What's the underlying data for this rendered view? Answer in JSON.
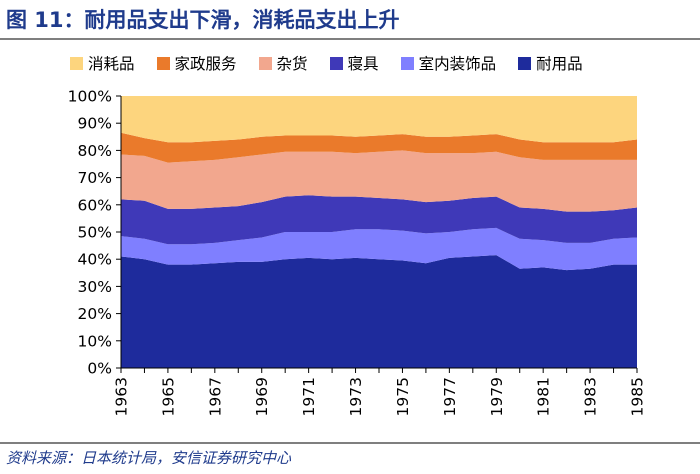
{
  "title": "图 11：耐用品支出下滑，消耗品支出上升",
  "source": "资料来源：日本统计局，安信证券研究中心",
  "chart_data": {
    "type": "area",
    "stacked": true,
    "x": [
      1963,
      1964,
      1965,
      1966,
      1967,
      1968,
      1969,
      1970,
      1971,
      1972,
      1973,
      1974,
      1975,
      1976,
      1977,
      1978,
      1979,
      1980,
      1981,
      1982,
      1983,
      1984,
      1985
    ],
    "x_tick_labels": [
      "1963",
      "1965",
      "1967",
      "1969",
      "1971",
      "1973",
      "1975",
      "1977",
      "1979",
      "1981",
      "1983",
      "1985"
    ],
    "y_tick_labels": [
      "0%",
      "10%",
      "20%",
      "30%",
      "40%",
      "50%",
      "60%",
      "70%",
      "80%",
      "90%",
      "100%"
    ],
    "ylim": [
      0,
      100
    ],
    "legend_position": "top",
    "series": [
      {
        "name": "耐用品",
        "color": "#1e2b9c",
        "values": [
          41,
          40,
          38,
          38,
          38.5,
          39,
          39,
          40,
          40.5,
          40,
          40.5,
          40,
          39.5,
          38.5,
          40.5,
          41,
          41.5,
          36.5,
          37,
          36,
          36.5,
          38,
          38
        ]
      },
      {
        "name": "室内装饰品",
        "color": "#7f7fff",
        "values": [
          7.5,
          7.5,
          7.5,
          7.5,
          7.5,
          8,
          9,
          10,
          9.5,
          10,
          10.5,
          11,
          11,
          11,
          9.5,
          10,
          10,
          11,
          10,
          10,
          9.5,
          9.5,
          10
        ]
      },
      {
        "name": "寝具",
        "color": "#3f39b8",
        "values": [
          13.5,
          14,
          13,
          13,
          13,
          12.5,
          13,
          13,
          13.5,
          13,
          12,
          11.5,
          11.5,
          11.5,
          11.5,
          11.5,
          11.5,
          11.5,
          11.5,
          11.5,
          11.5,
          10.5,
          11
        ]
      },
      {
        "name": "杂货",
        "color": "#f2a78e",
        "values": [
          16.5,
          16.5,
          17,
          17.5,
          17.5,
          18,
          17.5,
          16.5,
          16,
          16.5,
          16,
          17,
          18,
          18,
          17.5,
          16.5,
          16.5,
          18.5,
          18,
          19,
          19,
          18.5,
          17.5
        ]
      },
      {
        "name": "家政服务",
        "color": "#ea7a2b",
        "values": [
          8,
          6.5,
          7.5,
          7,
          7,
          6.5,
          6.5,
          6,
          6,
          6,
          6,
          6,
          6,
          6,
          6,
          6.5,
          6.5,
          6.5,
          6.5,
          6.5,
          6.5,
          6.5,
          7.5
        ]
      },
      {
        "name": "消耗品",
        "color": "#fdd57e",
        "values": [
          13.5,
          15.5,
          17,
          17,
          16.5,
          16,
          15,
          14.5,
          14.5,
          14.5,
          15,
          14.5,
          14,
          15,
          15,
          14.5,
          14,
          16,
          17,
          17,
          17,
          17,
          16
        ]
      }
    ]
  }
}
